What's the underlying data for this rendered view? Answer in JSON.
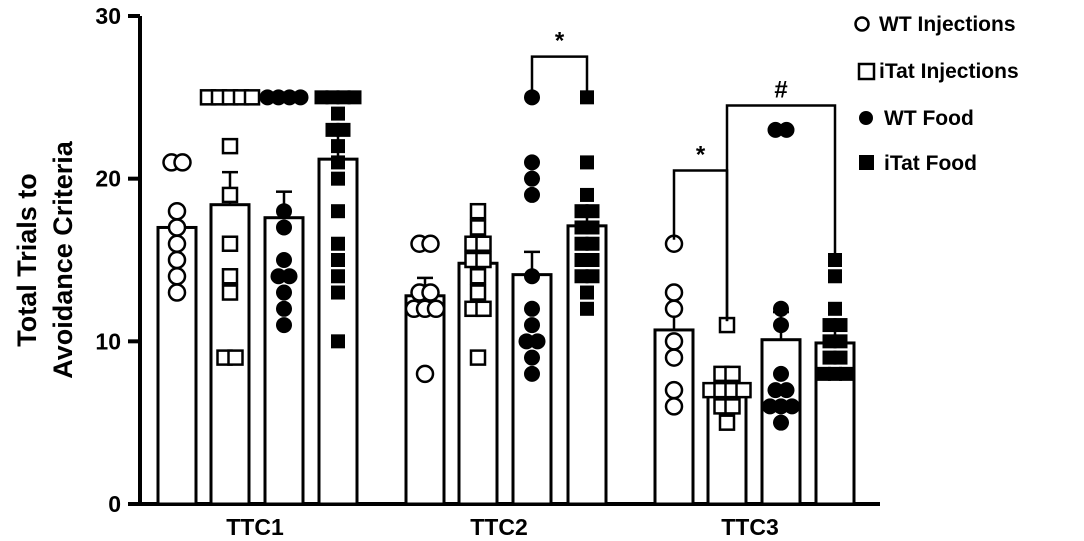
{
  "chart_data": {
    "type": "bar",
    "title": "",
    "xlabel": "",
    "ylabel_lines": [
      "Total Trials to",
      "Avoidance Criteria"
    ],
    "ylim": [
      0,
      30
    ],
    "yticks": [
      0,
      10,
      20,
      30
    ],
    "groups": [
      "TTC1",
      "TTC2",
      "TTC3"
    ],
    "colors": {
      "bar_fill": "#ffffff",
      "stroke": "#000000",
      "marker_filled": "#000000"
    },
    "series": [
      {
        "name": "WT Injections",
        "marker": "circle-open",
        "means": [
          17.0,
          12.8,
          10.7
        ],
        "errors": [
          1.2,
          1.1,
          1.2
        ],
        "points": [
          [
            21,
            21,
            18,
            17,
            16,
            15,
            14,
            13
          ],
          [
            16,
            16,
            13,
            13,
            12,
            12,
            12,
            8
          ],
          [
            16,
            13,
            12,
            10,
            9,
            7,
            6
          ]
        ]
      },
      {
        "name": "iTat Injections",
        "marker": "square-open",
        "means": [
          18.4,
          14.8,
          7.0
        ],
        "errors": [
          2.0,
          1.2,
          0.6
        ],
        "points": [
          [
            25,
            25,
            25,
            25,
            25,
            22,
            19,
            16,
            14,
            13,
            9,
            9
          ],
          [
            18,
            17,
            16,
            16,
            15,
            15,
            14,
            13,
            12,
            12,
            9
          ],
          [
            11,
            8,
            8,
            7,
            7,
            7,
            7,
            6,
            6,
            5
          ]
        ]
      },
      {
        "name": "WT Food",
        "marker": "circle-filled",
        "means": [
          17.6,
          14.1,
          10.1
        ],
        "errors": [
          1.6,
          1.4,
          1.7
        ],
        "points": [
          [
            25,
            25,
            25,
            25,
            18,
            17,
            15,
            14,
            14,
            13,
            12,
            11
          ],
          [
            25,
            21,
            20,
            19,
            14,
            12,
            11,
            10,
            10,
            9,
            8
          ],
          [
            23,
            23,
            12,
            11,
            8,
            7,
            7,
            6,
            6,
            6,
            5
          ]
        ]
      },
      {
        "name": "iTat Food",
        "marker": "square-filled",
        "means": [
          21.2,
          17.1,
          9.9
        ],
        "errors": [
          1.6,
          1.1,
          1.1
        ],
        "points": [
          [
            25,
            25,
            25,
            25,
            24,
            23,
            23,
            22,
            21,
            20,
            18,
            16,
            15,
            14,
            13,
            10
          ],
          [
            25,
            21,
            19,
            18,
            18,
            17,
            17,
            16,
            16,
            15,
            15,
            14,
            14,
            13,
            12
          ],
          [
            15,
            14,
            12,
            11,
            11,
            10,
            10,
            9,
            9,
            8,
            8,
            8
          ]
        ]
      }
    ],
    "significance": [
      {
        "label": "*",
        "from": [
          1,
          2
        ],
        "to": [
          1,
          3
        ],
        "y": 27.5
      },
      {
        "label": "*",
        "from": [
          2,
          0
        ],
        "to": [
          2,
          1
        ],
        "y": 20.5
      },
      {
        "label": "#",
        "from": [
          2,
          1
        ],
        "to": [
          2,
          3
        ],
        "y": 24.5
      }
    ],
    "legend_position": "top-right"
  }
}
